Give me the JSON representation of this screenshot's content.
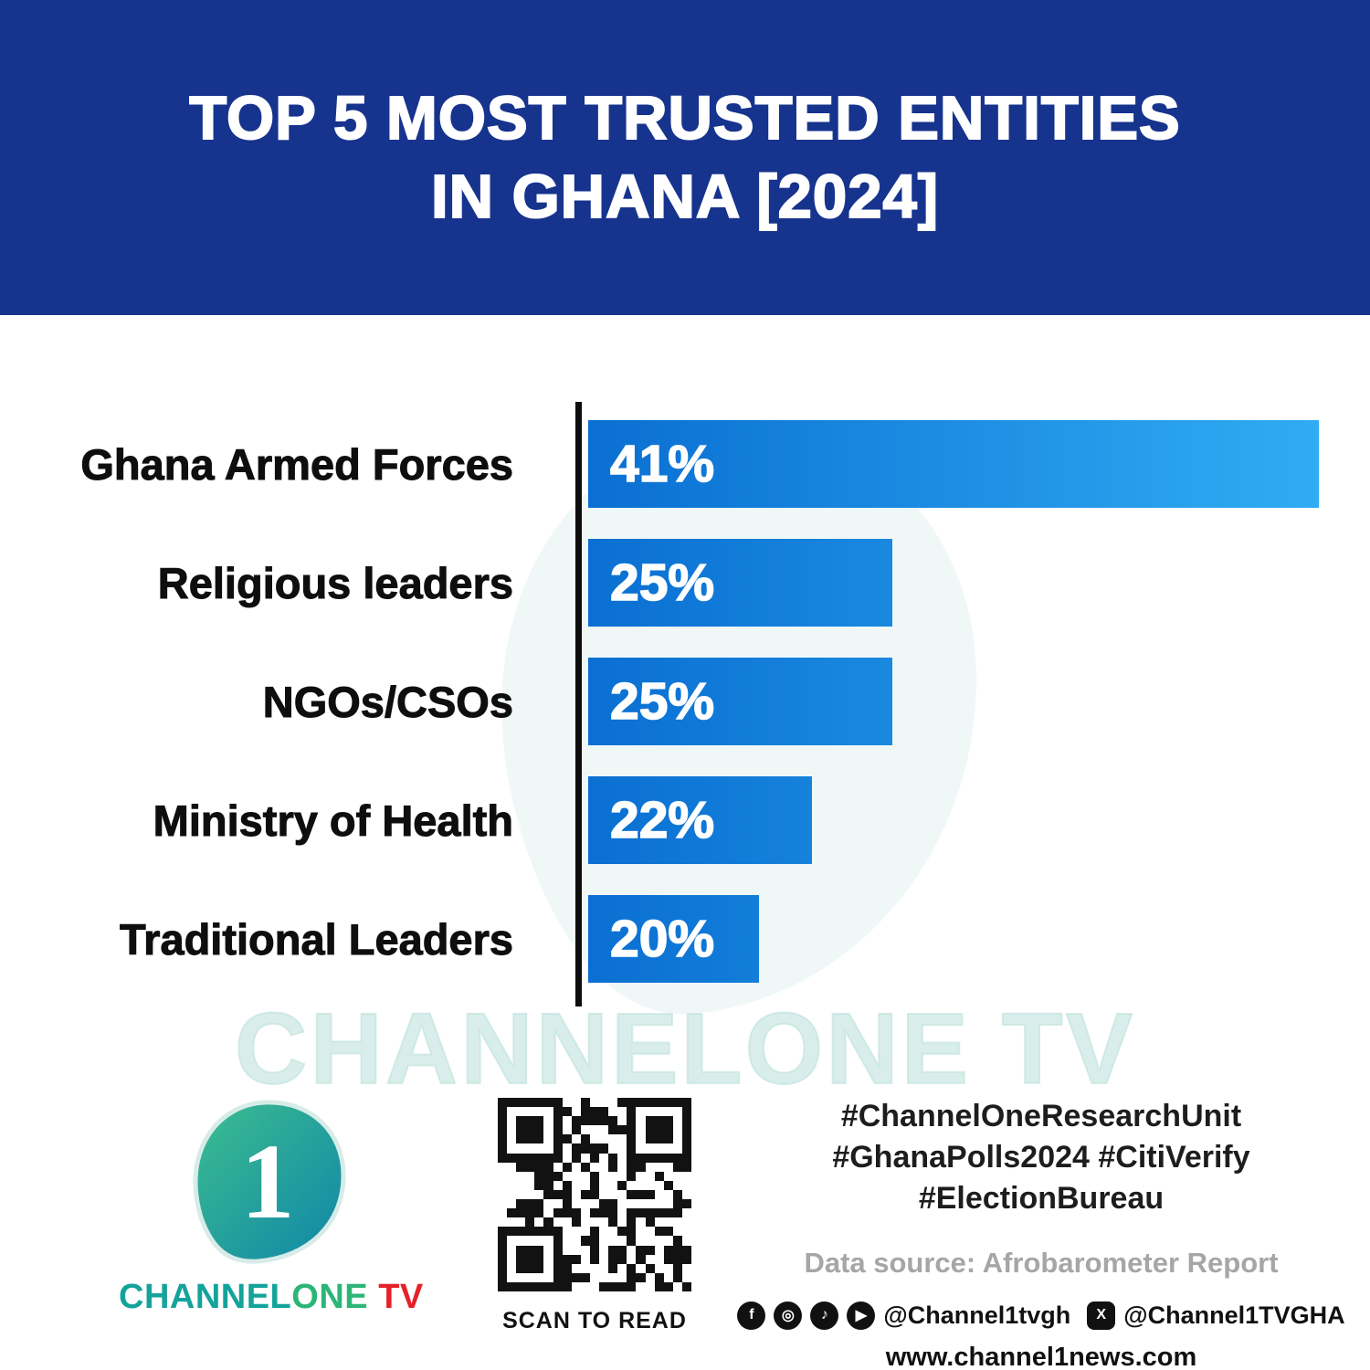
{
  "header": {
    "title_line1": "TOP 5 MOST TRUSTED ENTITIES",
    "title_line2": "IN GHANA [2024]",
    "bg_color": "#16338d"
  },
  "chart_data": {
    "type": "bar",
    "orientation": "horizontal",
    "title": "TOP 5 MOST TRUSTED ENTITIES IN GHANA [2024]",
    "categories": [
      "Ghana Armed Forces",
      "Religious leaders",
      "NGOs/CSOs",
      "Ministry of Health",
      "Traditional Leaders"
    ],
    "values": [
      41,
      25,
      25,
      22,
      20
    ],
    "labels": [
      "41%",
      "25%",
      "25%",
      "22%",
      "20%"
    ],
    "xlim": [
      13.6,
      41
    ],
    "grid": false,
    "legend": false,
    "bar_color_left": "#0a6fd2",
    "bar_color_right": "#30acf3",
    "axis_color": "#0d0d0d"
  },
  "watermark_text": "CHANNELONE TV",
  "footer": {
    "brand": {
      "part1": "CHANNEL",
      "part2": "ONE",
      "part3": " TV",
      "logo_numeral": "1",
      "teal": "#14a39b",
      "green": "#2cb577",
      "red": "#e62129"
    },
    "qr_caption": "SCAN TO READ",
    "hashtags_line1": "#ChannelOneResearchUnit",
    "hashtags_line2": "#GhanaPolls2024 #CitiVerify",
    "hashtags_line3": "#ElectionBureau",
    "data_source": "Data source: Afrobarometer Report",
    "social": {
      "facebook_glyph": "f",
      "instagram_glyph": "◎",
      "tiktok_glyph": "♪",
      "youtube_glyph": "▶",
      "x_glyph": "X",
      "handle_main": "@Channel1tvgh",
      "handle_x": "@Channel1TVGHA"
    },
    "website": "www.channel1news.com"
  }
}
